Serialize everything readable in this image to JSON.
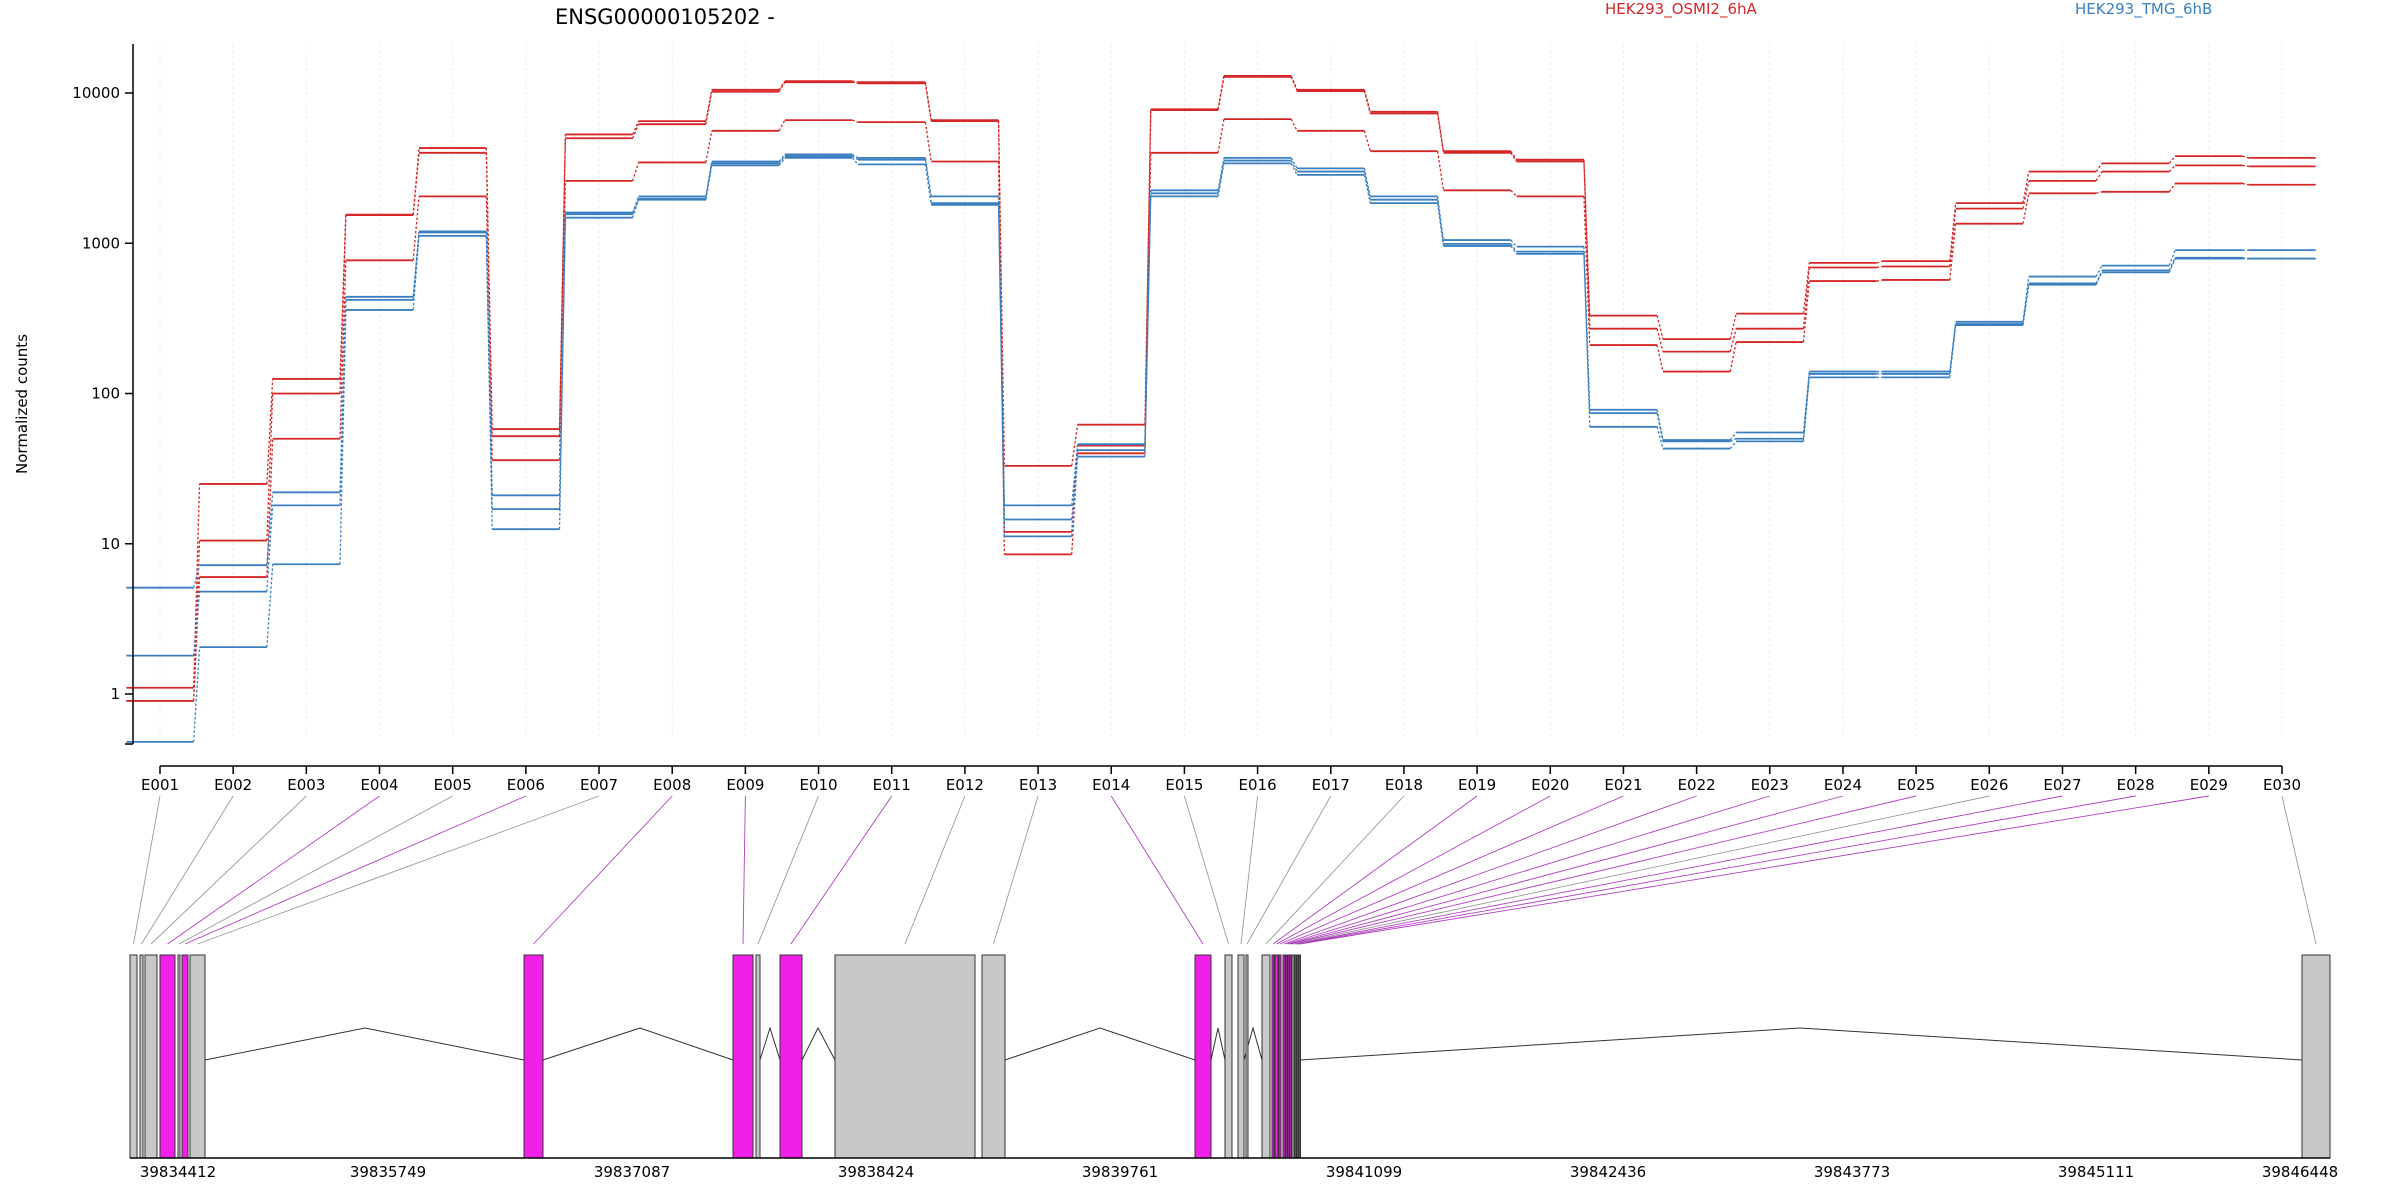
{
  "chart_data": {
    "type": "line",
    "title": "ENSG00000105202 -",
    "ylabel": "Normalized counts",
    "xlabel": "",
    "y_scale": "log",
    "ylim": [
      0.45,
      20000
    ],
    "y_ticks": [
      {
        "value": 1,
        "label": "1"
      },
      {
        "value": 10,
        "label": "10"
      },
      {
        "value": 100,
        "label": "100"
      },
      {
        "value": 1000,
        "label": "1000"
      },
      {
        "value": 10000,
        "label": "10000"
      }
    ],
    "grid": "vertical",
    "legend_position": "top",
    "colors": {
      "HEK293_OSMI2_6hA": "#d62728",
      "HEK293_TMG_6hB": "#3a7fc0",
      "exon_dexseq": "#f020e8",
      "exon_plain": "#c8c8c8",
      "link_dexseq": "#b040c0",
      "link_plain": "#999999"
    },
    "categories": [
      "E001",
      "E002",
      "E003",
      "E004",
      "E005",
      "E006",
      "E007",
      "E008",
      "E009",
      "E010",
      "E011",
      "E012",
      "E013",
      "E014",
      "E015",
      "E016",
      "E017",
      "E018",
      "E019",
      "E020",
      "E021",
      "E022",
      "E023",
      "E024",
      "E025",
      "E026",
      "E027",
      "E028",
      "E029",
      "E030"
    ],
    "legend": [
      {
        "name": "HEK293_OSMI2_6hA",
        "color": "#d62728"
      },
      {
        "name": "HEK293_TMG_6hB",
        "color": "#3a7fc0"
      }
    ],
    "series": [
      {
        "group": "HEK293_OSMI2_6hA",
        "values": [
          1.1,
          25,
          125,
          1550,
          4300,
          58,
          5300,
          6500,
          10500,
          12000,
          11800,
          6600,
          33,
          62,
          7800,
          13000,
          10500,
          7500,
          4100,
          3600,
          330,
          230,
          340,
          740,
          760,
          1850,
          3000,
          3400,
          3800,
          3700
        ]
      },
      {
        "group": "HEK293_OSMI2_6hA",
        "values": [
          0.9,
          10.5,
          100,
          1540,
          4000,
          52,
          5000,
          6200,
          10200,
          11800,
          11600,
          6500,
          12,
          45,
          7700,
          12800,
          10300,
          7300,
          4000,
          3500,
          270,
          190,
          270,
          690,
          700,
          1700,
          2600,
          3000,
          3300,
          3250
        ]
      },
      {
        "group": "HEK293_OSMI2_6hA",
        "values": [
          0.9,
          6,
          50,
          770,
          2050,
          36,
          2600,
          3450,
          5600,
          6600,
          6400,
          3500,
          8.5,
          40,
          4000,
          6700,
          5600,
          4100,
          2250,
          2050,
          210,
          140,
          220,
          560,
          570,
          1350,
          2150,
          2200,
          2500,
          2450
        ]
      },
      {
        "group": "HEK293_TMG_6hB",
        "values": [
          5.1,
          7.2,
          22,
          440,
          1200,
          21,
          1600,
          2050,
          3500,
          3900,
          3700,
          2050,
          18,
          46,
          2250,
          3700,
          3150,
          2050,
          1050,
          950,
          78,
          49,
          55,
          140,
          140,
          300,
          600,
          710,
          900,
          900
        ]
      },
      {
        "group": "HEK293_TMG_6hB",
        "values": [
          1.8,
          4.8,
          18,
          420,
          1180,
          17,
          1560,
          1980,
          3400,
          3800,
          3600,
          1850,
          14.5,
          42,
          2150,
          3550,
          3000,
          1950,
          990,
          880,
          74,
          48,
          50,
          135,
          135,
          290,
          540,
          660,
          800,
          790
        ]
      },
      {
        "group": "HEK293_TMG_6hB",
        "values": [
          0.48,
          2.05,
          7.3,
          360,
          1120,
          12.5,
          1480,
          1950,
          3300,
          3700,
          3350,
          1800,
          11.2,
          38,
          2050,
          3400,
          2850,
          1850,
          960,
          850,
          60,
          43,
          48,
          128,
          128,
          285,
          530,
          640,
          790,
          790
        ]
      }
    ],
    "gene_model": {
      "coordinate_labels": [
        "39834412",
        "39835749",
        "39837087",
        "39838424",
        "39839761",
        "39841099",
        "39842436",
        "39843773",
        "39845111",
        "39846448"
      ],
      "exon_dexseq_flags": [
        false,
        false,
        false,
        true,
        false,
        true,
        false,
        true,
        true,
        false,
        true,
        false,
        false,
        true,
        false,
        false,
        false,
        false,
        true,
        true,
        true,
        true,
        true,
        true,
        true,
        false,
        true,
        true,
        true,
        false
      ]
    }
  }
}
